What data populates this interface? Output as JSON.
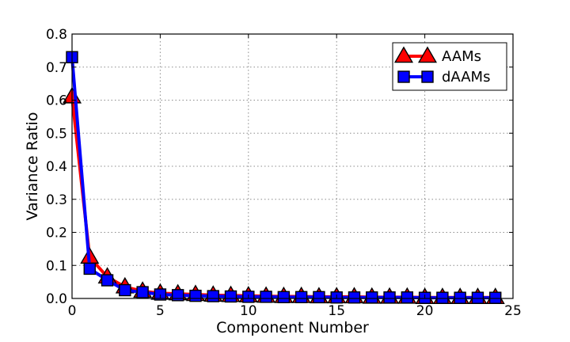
{
  "chart_data": {
    "type": "line",
    "title": "",
    "xlabel": "Component Number",
    "ylabel": "Variance Ratio",
    "xlim": [
      0,
      25
    ],
    "ylim": [
      0,
      0.8
    ],
    "xticks": [
      0,
      5,
      10,
      15,
      20,
      25
    ],
    "xtick_labels": [
      "0",
      "5",
      "10",
      "15",
      "20",
      "25"
    ],
    "yticks": [
      0.0,
      0.1,
      0.2,
      0.3,
      0.4,
      0.5,
      0.6,
      0.7,
      0.8
    ],
    "ytick_labels": [
      "0.0",
      "0.1",
      "0.2",
      "0.3",
      "0.4",
      "0.5",
      "0.6",
      "0.7",
      "0.8"
    ],
    "grid": true,
    "legend_position": "top-right",
    "x": [
      0,
      1,
      2,
      3,
      4,
      5,
      6,
      7,
      8,
      9,
      10,
      11,
      12,
      13,
      14,
      15,
      16,
      17,
      18,
      19,
      20,
      21,
      22,
      23,
      24
    ],
    "series": [
      {
        "name": "AAMs",
        "color": "#ff0000",
        "marker": "triangle",
        "values": [
          0.61,
          0.125,
          0.065,
          0.035,
          0.022,
          0.016,
          0.014,
          0.012,
          0.01,
          0.009,
          0.008,
          0.007,
          0.006,
          0.006,
          0.005,
          0.005,
          0.005,
          0.004,
          0.004,
          0.004,
          0.003,
          0.003,
          0.003,
          0.003,
          0.003
        ]
      },
      {
        "name": "dAAMs",
        "color": "#0000ff",
        "marker": "square",
        "values": [
          0.73,
          0.09,
          0.055,
          0.025,
          0.019,
          0.012,
          0.01,
          0.008,
          0.007,
          0.006,
          0.005,
          0.005,
          0.004,
          0.004,
          0.004,
          0.003,
          0.003,
          0.003,
          0.003,
          0.003,
          0.002,
          0.002,
          0.002,
          0.002,
          0.002
        ]
      }
    ]
  }
}
